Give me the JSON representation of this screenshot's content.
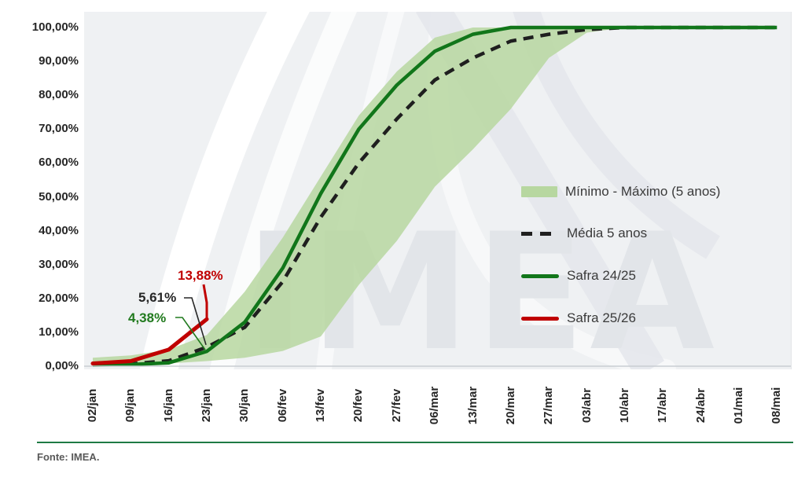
{
  "watermark": "IMEA",
  "footer": {
    "source": "Fonte: IMEA."
  },
  "colors": {
    "plot_background": "#eff1f3",
    "band_fill": "#b7d7a0",
    "media_line": "#1f1f1f",
    "safra_2425_line": "#11761a",
    "safra_2526_line": "#c00000",
    "axis_text": "#262626",
    "baseline": "#c9cdd2",
    "footer_rule": "#1f7a44",
    "annotation_red": "#c00000",
    "annotation_black": "#262626",
    "annotation_green": "#217a1e"
  },
  "chart_data": {
    "type": "area",
    "title": "",
    "xlabel": "",
    "ylabel": "",
    "ylim": [
      0,
      100
    ],
    "grid": false,
    "legend_position": "right",
    "y_ticks": [
      "100,00%",
      "90,00%",
      "80,00%",
      "70,00%",
      "60,00%",
      "50,00%",
      "40,00%",
      "30,00%",
      "20,00%",
      "10,00%",
      "0,00%"
    ],
    "categories": [
      "02/jan",
      "09/jan",
      "16/jan",
      "23/jan",
      "30/jan",
      "06/fev",
      "13/fev",
      "20/fev",
      "27/fev",
      "06/mar",
      "13/mar",
      "20/mar",
      "27/mar",
      "03/abr",
      "10/abr",
      "17/abr",
      "24/abr",
      "01/mai",
      "08/mai"
    ],
    "series": [
      {
        "name": "Mínimo - Máximo (5 anos)",
        "type": "band",
        "max": [
          2.5,
          3.2,
          4.9,
          9.2,
          22,
          38,
          56,
          74,
          87,
          97,
          100,
          100,
          100,
          100,
          100,
          100,
          100,
          100,
          100
        ],
        "min": [
          0.3,
          0.5,
          0.8,
          1.5,
          2.5,
          4.5,
          8.8,
          24,
          37,
          53,
          64,
          76,
          91,
          98.5,
          100,
          100,
          100,
          100,
          100
        ]
      },
      {
        "name": "Média 5 anos",
        "type": "dashed-line",
        "values": [
          0.4,
          0.7,
          1.6,
          5.61,
          11.5,
          25,
          44,
          60,
          73,
          84.5,
          91,
          96,
          98,
          99.4,
          100,
          100,
          100,
          100,
          100
        ]
      },
      {
        "name": "Safra 24/25",
        "type": "line",
        "values": [
          0.3,
          0.5,
          1.0,
          4.38,
          13,
          29,
          51,
          70,
          83,
          93,
          98,
          100,
          100,
          100,
          100,
          100,
          100,
          100,
          100
        ]
      },
      {
        "name": "Safra 25/26",
        "type": "line",
        "values": [
          0.8,
          1.5,
          4.9,
          13.88,
          null,
          null,
          null,
          null,
          null,
          null,
          null,
          null,
          null,
          null,
          null,
          null,
          null,
          null,
          null
        ]
      }
    ],
    "annotations": [
      {
        "label": "13,88%",
        "value": 13.88,
        "x": "23/jan",
        "series": "Safra 25/26"
      },
      {
        "label": "5,61%",
        "value": 5.61,
        "x": "23/jan",
        "series": "Média 5 anos"
      },
      {
        "label": "4,38%",
        "value": 4.38,
        "x": "23/jan",
        "series": "Safra 24/25"
      }
    ]
  }
}
